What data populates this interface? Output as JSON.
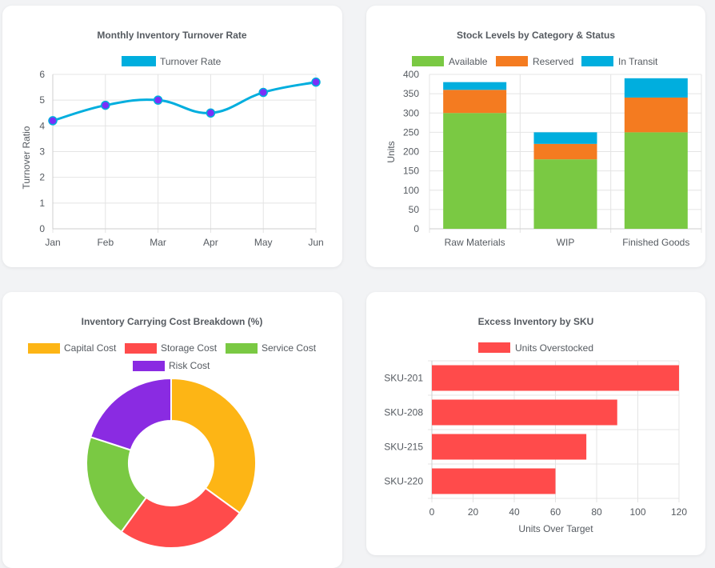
{
  "chart_data": [
    {
      "type": "line",
      "title": "Monthly Inventory Turnover Rate",
      "categories": [
        "Jan",
        "Feb",
        "Mar",
        "Apr",
        "May",
        "Jun"
      ],
      "series": [
        {
          "name": "Turnover Rate",
          "values": [
            4.2,
            4.8,
            5.0,
            4.5,
            5.3,
            5.7
          ],
          "color": "#00aede",
          "point_color": "#7b2ff7"
        }
      ],
      "xlabel": "",
      "ylabel": "Turnover Ratio",
      "ylim": [
        0,
        6
      ],
      "yticks": [
        0,
        1,
        2,
        3,
        4,
        5,
        6
      ],
      "legend": "top"
    },
    {
      "type": "bar",
      "stacked": true,
      "title": "Stock Levels by Category & Status",
      "categories": [
        "Raw Materials",
        "WIP",
        "Finished Goods"
      ],
      "series": [
        {
          "name": "Available",
          "values": [
            300,
            180,
            250
          ],
          "color": "#7ac943"
        },
        {
          "name": "Reserved",
          "values": [
            60,
            40,
            90
          ],
          "color": "#f47b20"
        },
        {
          "name": "In Transit",
          "values": [
            20,
            30,
            50
          ],
          "color": "#00aede"
        }
      ],
      "xlabel": "",
      "ylabel": "Units",
      "ylim": [
        0,
        400
      ],
      "yticks": [
        0,
        50,
        100,
        150,
        200,
        250,
        300,
        350,
        400
      ],
      "legend": "top"
    },
    {
      "type": "pie",
      "donut": true,
      "title": "Inventory Carrying Cost Breakdown (%)",
      "categories": [
        "Capital Cost",
        "Storage Cost",
        "Service Cost",
        "Risk Cost"
      ],
      "values": [
        35,
        25,
        20,
        20
      ],
      "colors": [
        "#fdb515",
        "#ff4b4b",
        "#7ac943",
        "#8a2be2"
      ],
      "legend": "top"
    },
    {
      "type": "bar",
      "orientation": "horizontal",
      "title": "Excess Inventory by SKU",
      "categories": [
        "SKU-201",
        "SKU-208",
        "SKU-215",
        "SKU-220"
      ],
      "series": [
        {
          "name": "Units Overstocked",
          "values": [
            120,
            90,
            75,
            60
          ],
          "color": "#ff4b4b"
        }
      ],
      "xlabel": "Units Over Target",
      "ylabel": "",
      "xlim": [
        0,
        120
      ],
      "xticks": [
        0,
        20,
        40,
        60,
        80,
        100,
        120
      ],
      "legend": "top"
    }
  ]
}
